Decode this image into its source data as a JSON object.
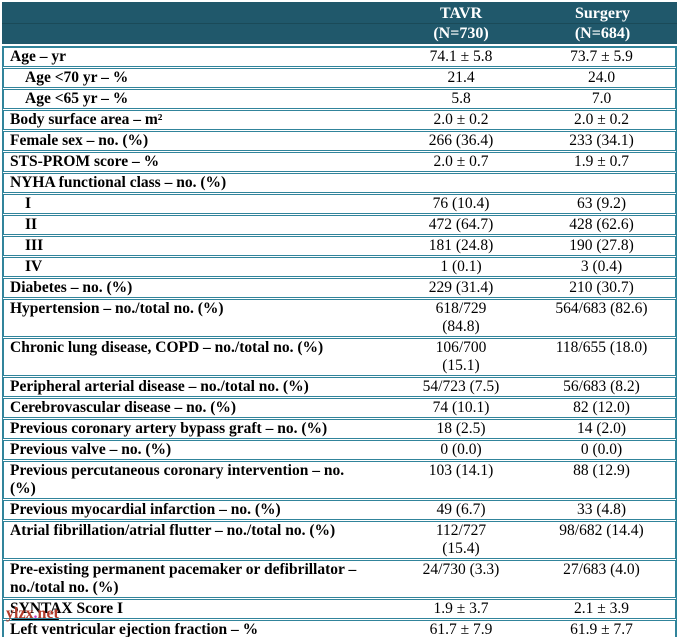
{
  "colors": {
    "header_bg": "#20586B",
    "border": "#31849B",
    "header_divider": "#1A4A58",
    "header_text": "#FFFFFF",
    "text": "#000000",
    "watermark_main": "#B23B2A",
    "watermark_dot": "#C837C8"
  },
  "header": {
    "columns": [
      {
        "title": "TAVR",
        "subtitle": "(N=730)"
      },
      {
        "title": "Surgery",
        "subtitle": "(N=684)"
      }
    ]
  },
  "table": {
    "rows": [
      {
        "label": "Age – yr",
        "indent": 0,
        "tavr": "74.1 ± 5.8",
        "surgery": "73.7 ± 5.9"
      },
      {
        "label": "Age <70 yr – %",
        "indent": 1,
        "tavr": "21.4",
        "surgery": "24.0"
      },
      {
        "label": "Age <65 yr – %",
        "indent": 1,
        "tavr": "5.8",
        "surgery": "7.0"
      },
      {
        "label": "Body surface area – m²",
        "indent": 0,
        "tavr": "2.0 ± 0.2",
        "surgery": "2.0 ± 0.2"
      },
      {
        "label": "Female sex – no. (%)",
        "indent": 0,
        "tavr": "266 (36.4)",
        "surgery": "233 (34.1)"
      },
      {
        "label": "STS-PROM score – %",
        "indent": 0,
        "tavr": "2.0 ± 0.7",
        "surgery": "1.9 ± 0.7"
      },
      {
        "label": "NYHA functional class – no. (%)",
        "indent": 0,
        "tavr": "",
        "surgery": ""
      },
      {
        "label": "I",
        "indent": 1,
        "tavr": "76 (10.4)",
        "surgery": "63 (9.2)"
      },
      {
        "label": "II",
        "indent": 1,
        "tavr": "472 (64.7)",
        "surgery": "428 (62.6)"
      },
      {
        "label": "III",
        "indent": 1,
        "tavr": "181 (24.8)",
        "surgery": "190 (27.8)"
      },
      {
        "label": "IV",
        "indent": 1,
        "tavr": "1 (0.1)",
        "surgery": "3 (0.4)"
      },
      {
        "label": "Diabetes – no. (%)",
        "indent": 0,
        "tavr": "229 (31.4)",
        "surgery": "210 (30.7)"
      },
      {
        "label": "Hypertension – no./total no. (%)",
        "indent": 0,
        "tavr": "618/729\n(84.8)",
        "surgery": "564/683 (82.6)"
      },
      {
        "label": "Chronic lung disease, COPD – no./total no. (%)",
        "indent": 0,
        "tavr": "106/700\n(15.1)",
        "surgery": "118/655 (18.0)"
      },
      {
        "label": "Peripheral arterial disease – no./total no. (%)",
        "indent": 0,
        "tavr": "54/723 (7.5)",
        "surgery": "56/683 (8.2)"
      },
      {
        "label": "Cerebrovascular disease – no. (%)",
        "indent": 0,
        "tavr": "74 (10.1)",
        "surgery": "82 (12.0)"
      },
      {
        "label": "Previous coronary artery bypass graft – no. (%)",
        "indent": 0,
        "tavr": "18 (2.5)",
        "surgery": "14 (2.0)"
      },
      {
        "label": "Previous valve – no. (%)",
        "indent": 0,
        "tavr": "0 (0.0)",
        "surgery": "0 (0.0)"
      },
      {
        "label": "Previous percutaneous coronary intervention – no.\n(%)",
        "indent": 0,
        "tavr": "103 (14.1)",
        "surgery": "88 (12.9)"
      },
      {
        "label": "Previous myocardial infarction – no. (%)",
        "indent": 0,
        "tavr": "49 (6.7)",
        "surgery": "33 (4.8)"
      },
      {
        "label": "Atrial fibrillation/atrial flutter – no./total no. (%)",
        "indent": 0,
        "tavr": "112/727\n(15.4)",
        "surgery": "98/682 (14.4)"
      },
      {
        "label": "Pre-existing permanent pacemaker or defibrillator –\nno./total no. (%)",
        "indent": 0,
        "tavr": "24/730 (3.3)",
        "surgery": "27/683 (4.0)"
      },
      {
        "label": "SYNTAX Score I",
        "indent": 0,
        "tavr": "1.9 ± 3.7",
        "surgery": "2.1 ± 3.9"
      },
      {
        "label": "Left ventricular ejection fraction – %",
        "indent": 0,
        "tavr": "61.7 ± 7.9",
        "surgery": "61.9 ± 7.7"
      }
    ]
  },
  "watermark": {
    "prefix": "ylzx",
    "dot": ".",
    "suffix": "net"
  }
}
